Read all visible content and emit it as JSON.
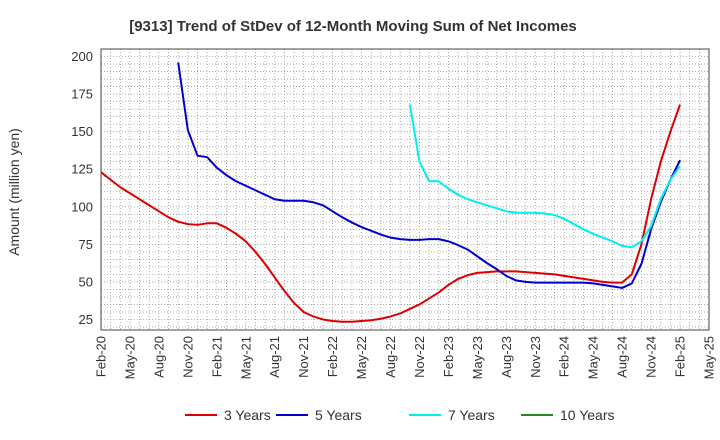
{
  "chart_data": {
    "type": "line",
    "title": "[9313]  Trend of StDev of 12-Month Moving Sum of Net Incomes",
    "xlabel": "",
    "ylabel": "Amount (million yen)",
    "ylim": [
      18,
      205
    ],
    "yticks": [
      25,
      50,
      75,
      100,
      125,
      150,
      175,
      200
    ],
    "xlim": [
      "2020-02",
      "2025-05"
    ],
    "xticks": [
      "Feb-20",
      "May-20",
      "Aug-20",
      "Nov-20",
      "Feb-21",
      "May-21",
      "Aug-21",
      "Nov-21",
      "Feb-22",
      "May-22",
      "Aug-22",
      "Nov-22",
      "Feb-23",
      "May-23",
      "Aug-23",
      "Nov-23",
      "Feb-24",
      "May-24",
      "Aug-24",
      "Nov-24",
      "Feb-25",
      "May-25"
    ],
    "grid": true,
    "legend_position": "bottom",
    "series": [
      {
        "name": "3 Years",
        "color": "#dd0000",
        "points": [
          [
            "2020-02",
            123
          ],
          [
            "2020-03",
            118
          ],
          [
            "2020-04",
            113
          ],
          [
            "2020-05",
            109
          ],
          [
            "2020-06",
            105
          ],
          [
            "2020-07",
            101
          ],
          [
            "2020-08",
            97
          ],
          [
            "2020-09",
            93
          ],
          [
            "2020-10",
            90
          ],
          [
            "2020-11",
            88.5
          ],
          [
            "2020-12",
            88
          ],
          [
            "2021-01",
            89
          ],
          [
            "2021-02",
            89
          ],
          [
            "2021-03",
            86
          ],
          [
            "2021-04",
            82
          ],
          [
            "2021-05",
            77
          ],
          [
            "2021-06",
            70
          ],
          [
            "2021-07",
            62
          ],
          [
            "2021-08",
            53
          ],
          [
            "2021-09",
            44
          ],
          [
            "2021-10",
            36
          ],
          [
            "2021-11",
            30
          ],
          [
            "2021-12",
            27
          ],
          [
            "2022-01",
            25
          ],
          [
            "2022-02",
            24
          ],
          [
            "2022-03",
            23.5
          ],
          [
            "2022-04",
            23.5
          ],
          [
            "2022-05",
            24
          ],
          [
            "2022-06",
            24.5
          ],
          [
            "2022-07",
            25.5
          ],
          [
            "2022-08",
            27
          ],
          [
            "2022-09",
            29
          ],
          [
            "2022-10",
            32
          ],
          [
            "2022-11",
            35
          ],
          [
            "2022-12",
            39
          ],
          [
            "2023-01",
            43
          ],
          [
            "2023-02",
            48
          ],
          [
            "2023-03",
            52
          ],
          [
            "2023-04",
            54.5
          ],
          [
            "2023-05",
            56
          ],
          [
            "2023-06",
            56.5
          ],
          [
            "2023-07",
            57
          ],
          [
            "2023-08",
            57
          ],
          [
            "2023-09",
            57
          ],
          [
            "2023-10",
            56.5
          ],
          [
            "2023-11",
            56
          ],
          [
            "2023-12",
            55.5
          ],
          [
            "2024-01",
            55
          ],
          [
            "2024-02",
            54
          ],
          [
            "2024-03",
            53
          ],
          [
            "2024-04",
            52
          ],
          [
            "2024-05",
            51
          ],
          [
            "2024-06",
            50
          ],
          [
            "2024-07",
            49.5
          ],
          [
            "2024-08",
            49.5
          ],
          [
            "2024-09",
            55
          ],
          [
            "2024-10",
            75
          ],
          [
            "2024-11",
            105
          ],
          [
            "2024-12",
            130
          ],
          [
            "2025-01",
            150
          ],
          [
            "2025-02",
            168
          ]
        ]
      },
      {
        "name": "5 Years",
        "color": "#0000cc",
        "points": [
          [
            "2020-10",
            196
          ],
          [
            "2020-11",
            151
          ],
          [
            "2020-12",
            134
          ],
          [
            "2021-01",
            133
          ],
          [
            "2021-02",
            126
          ],
          [
            "2021-03",
            121
          ],
          [
            "2021-04",
            117
          ],
          [
            "2021-05",
            114
          ],
          [
            "2021-06",
            111
          ],
          [
            "2021-07",
            108
          ],
          [
            "2021-08",
            105
          ],
          [
            "2021-09",
            104
          ],
          [
            "2021-10",
            104
          ],
          [
            "2021-11",
            104
          ],
          [
            "2021-12",
            103
          ],
          [
            "2022-01",
            101
          ],
          [
            "2022-02",
            97
          ],
          [
            "2022-03",
            93
          ],
          [
            "2022-04",
            89.5
          ],
          [
            "2022-05",
            86.5
          ],
          [
            "2022-06",
            84
          ],
          [
            "2022-07",
            81.5
          ],
          [
            "2022-08",
            79.5
          ],
          [
            "2022-09",
            78.5
          ],
          [
            "2022-10",
            78
          ],
          [
            "2022-11",
            78
          ],
          [
            "2022-12",
            78.5
          ],
          [
            "2023-01",
            78.5
          ],
          [
            "2023-02",
            77
          ],
          [
            "2023-03",
            74.5
          ],
          [
            "2023-04",
            71.5
          ],
          [
            "2023-05",
            67
          ],
          [
            "2023-06",
            62.5
          ],
          [
            "2023-07",
            58.5
          ],
          [
            "2023-08",
            54
          ],
          [
            "2023-09",
            51
          ],
          [
            "2023-10",
            50
          ],
          [
            "2023-11",
            49.5
          ],
          [
            "2023-12",
            49.5
          ],
          [
            "2024-01",
            49.5
          ],
          [
            "2024-02",
            49.5
          ],
          [
            "2024-03",
            49.5
          ],
          [
            "2024-04",
            49.5
          ],
          [
            "2024-05",
            49
          ],
          [
            "2024-06",
            48
          ],
          [
            "2024-07",
            47
          ],
          [
            "2024-08",
            46
          ],
          [
            "2024-09",
            49
          ],
          [
            "2024-10",
            62
          ],
          [
            "2024-11",
            85
          ],
          [
            "2024-12",
            103
          ],
          [
            "2025-01",
            118
          ],
          [
            "2025-02",
            131
          ]
        ]
      },
      {
        "name": "7 Years",
        "color": "#00eeee",
        "points": [
          [
            "2022-10",
            168
          ],
          [
            "2022-11",
            130
          ],
          [
            "2022-12",
            117
          ],
          [
            "2023-01",
            117
          ],
          [
            "2023-02",
            112
          ],
          [
            "2023-03",
            108
          ],
          [
            "2023-04",
            105
          ],
          [
            "2023-05",
            103
          ],
          [
            "2023-06",
            101
          ],
          [
            "2023-07",
            99
          ],
          [
            "2023-08",
            97
          ],
          [
            "2023-09",
            96
          ],
          [
            "2023-10",
            96
          ],
          [
            "2023-11",
            96
          ],
          [
            "2023-12",
            95.5
          ],
          [
            "2024-01",
            94.5
          ],
          [
            "2024-02",
            92
          ],
          [
            "2024-03",
            88.5
          ],
          [
            "2024-04",
            85
          ],
          [
            "2024-05",
            82
          ],
          [
            "2024-06",
            79.5
          ],
          [
            "2024-07",
            77
          ],
          [
            "2024-08",
            74
          ],
          [
            "2024-09",
            73
          ],
          [
            "2024-10",
            77
          ],
          [
            "2024-11",
            87
          ],
          [
            "2024-12",
            105
          ],
          [
            "2025-01",
            118
          ],
          [
            "2025-02",
            127
          ]
        ]
      },
      {
        "name": "10 Years",
        "color": "#228822",
        "points": []
      }
    ]
  }
}
